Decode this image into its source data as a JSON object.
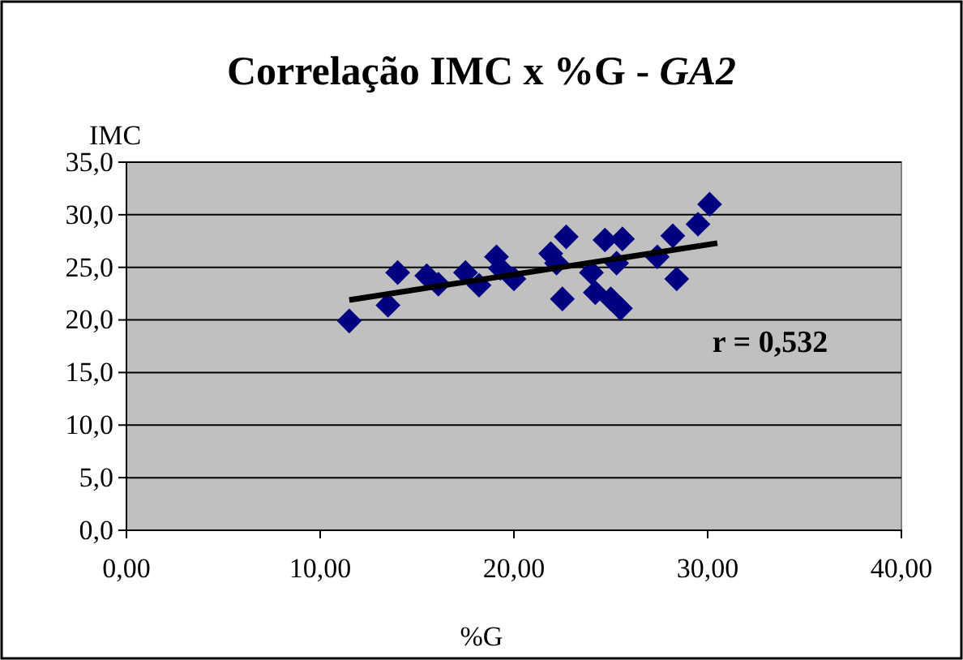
{
  "chart_data": {
    "type": "scatter",
    "title": "Correlação IMC x %G - GA2",
    "xlabel": "%G",
    "ylabel": "IMC",
    "xlim": [
      0,
      40
    ],
    "xticks": [
      {
        "value": 0,
        "label": "0,00"
      },
      {
        "value": 10,
        "label": "10,00"
      },
      {
        "value": 20,
        "label": "20,00"
      },
      {
        "value": 30,
        "label": "30,00"
      },
      {
        "value": 40,
        "label": "40,00"
      }
    ],
    "ylim": [
      0,
      35
    ],
    "yticks": [
      {
        "value": 0,
        "label": "0,0"
      },
      {
        "value": 5,
        "label": "5,0"
      },
      {
        "value": 10,
        "label": "10,0"
      },
      {
        "value": 15,
        "label": "15,0"
      },
      {
        "value": 20,
        "label": "20,0"
      },
      {
        "value": 25,
        "label": "25,0"
      },
      {
        "value": 30,
        "label": "30,0"
      },
      {
        "value": 35,
        "label": "35,0"
      }
    ],
    "grid": "y",
    "annotations": [
      "r = 0,532"
    ],
    "series": [
      {
        "color": "#000080",
        "marker": "diamond",
        "x": [
          11.5,
          13.5,
          14.0,
          15.5,
          16.1,
          17.5,
          18.2,
          19.1,
          19.3,
          20.0,
          21.9,
          22.2,
          22.7,
          22.5,
          24.0,
          24.2,
          24.7,
          25.0,
          25.3,
          25.5,
          25.6,
          27.4,
          28.2,
          28.4,
          29.5,
          30.1
        ],
        "values": [
          19.9,
          21.4,
          24.5,
          24.2,
          23.4,
          24.5,
          23.3,
          26.0,
          24.9,
          23.9,
          26.3,
          25.4,
          27.9,
          22.0,
          24.5,
          22.6,
          27.6,
          22.0,
          25.4,
          21.1,
          27.7,
          26.0,
          28.0,
          23.9,
          29.1,
          31.0
        ]
      },
      {
        "type": "line",
        "color": "#000000",
        "x": [
          11.5,
          30.5
        ],
        "values": [
          21.9,
          27.3
        ],
        "marker": "none"
      }
    ]
  }
}
